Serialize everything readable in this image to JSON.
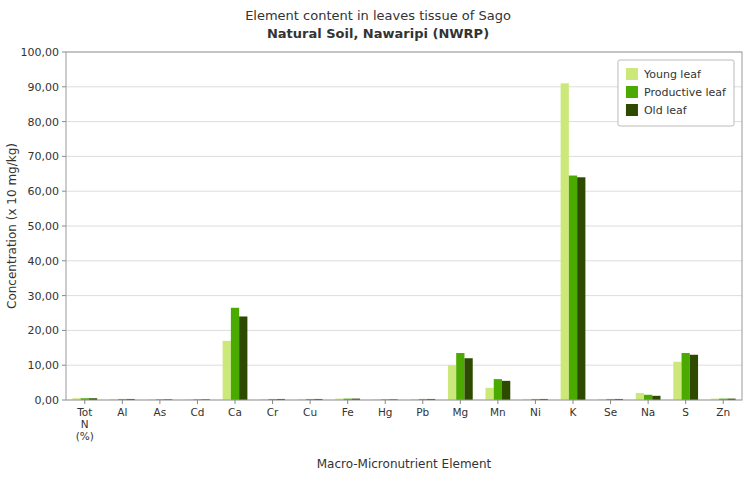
{
  "chart_data": {
    "type": "bar",
    "title": "Element content in leaves tissue of Sago",
    "subtitle": "Natural Soil, Nawaripi (NWRP)",
    "x_label": "Macro-Micronutrient Element",
    "y_label": "Concentration (x 10 mg/kg)",
    "categories": [
      "Tot\nN\n(%)",
      "Al",
      "As",
      "Cd",
      "Ca",
      "Cr",
      "Cu",
      "Fe",
      "Hg",
      "Pb",
      "Mg",
      "Mn",
      "Ni",
      "K",
      "Se",
      "Na",
      "S",
      "Zn"
    ],
    "series": [
      {
        "name": "Young leaf",
        "color": "#cce87a",
        "values": [
          0.5,
          0.3,
          0.2,
          0.2,
          17.0,
          0.3,
          0.3,
          0.4,
          0.2,
          0.3,
          10.0,
          3.5,
          0.3,
          91.0,
          0.3,
          2.0,
          11.0,
          0.4
        ]
      },
      {
        "name": "Productive leaf",
        "color": "#4aaa00",
        "values": [
          0.5,
          0.3,
          0.2,
          0.2,
          26.5,
          0.3,
          0.3,
          0.4,
          0.2,
          0.3,
          13.5,
          6.0,
          0.3,
          64.5,
          0.3,
          1.5,
          13.5,
          0.4
        ]
      },
      {
        "name": "Old leaf",
        "color": "#2d4a00",
        "values": [
          0.5,
          0.3,
          0.2,
          0.2,
          24.0,
          0.3,
          0.3,
          0.4,
          0.2,
          0.3,
          12.0,
          5.5,
          0.3,
          64.0,
          0.3,
          1.2,
          13.0,
          0.4
        ]
      }
    ],
    "ylim": [
      0,
      100
    ],
    "yticks": [
      {
        "value": 0.0,
        "label": "0,00"
      },
      {
        "value": 10.0,
        "label": "10,00"
      },
      {
        "value": 20.0,
        "label": "20,00"
      },
      {
        "value": 30.0,
        "label": "30,00"
      },
      {
        "value": 40.0,
        "label": "40,00"
      },
      {
        "value": 50.0,
        "label": "50,00"
      },
      {
        "value": 60.0,
        "label": "60,00"
      },
      {
        "value": 70.0,
        "label": "70,00"
      },
      {
        "value": 80.0,
        "label": "80,00"
      },
      {
        "value": 90.0,
        "label": "90,00"
      },
      {
        "value": 100.0,
        "label": "100,00"
      }
    ],
    "grid": true,
    "legend": "upper right"
  }
}
